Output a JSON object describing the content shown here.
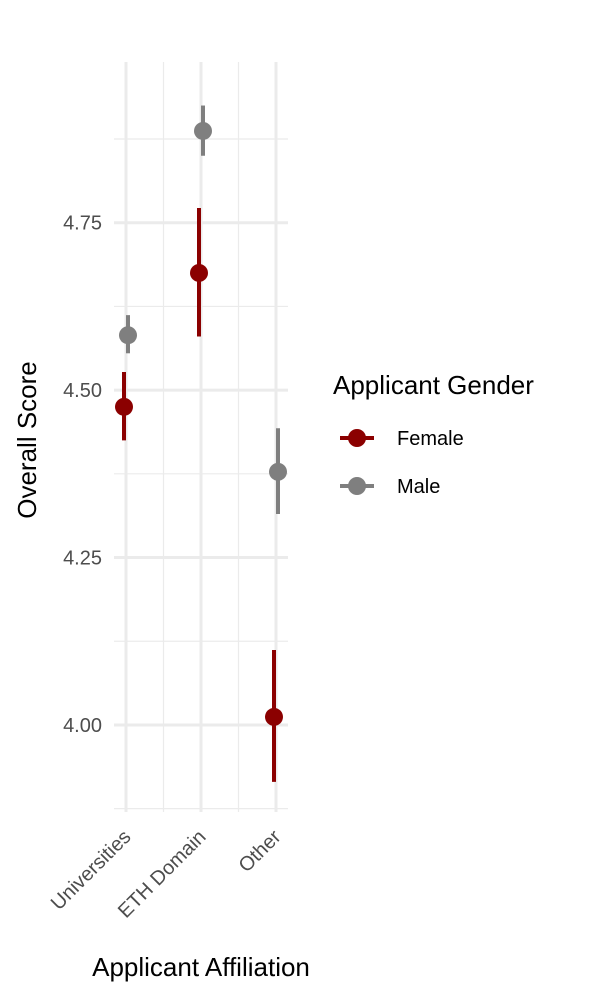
{
  "chart_data": {
    "type": "scatter",
    "subtype": "point-range",
    "xlabel": "Applicant Affiliation",
    "ylabel": "Overall Score",
    "categories": [
      "Universities",
      "ETH Domain",
      "Other"
    ],
    "ylim": [
      3.87,
      4.99
    ],
    "yticks": [
      4.0,
      4.25,
      4.5,
      4.75
    ],
    "ytick_labels": [
      "4.00",
      "4.25",
      "4.50",
      "4.75"
    ],
    "grid": true,
    "legend": {
      "title": "Applicant Gender",
      "position": "right"
    },
    "series": [
      {
        "name": "Female",
        "color": "#8B0000",
        "values": [
          4.475,
          4.675,
          4.012
        ],
        "lower": [
          4.425,
          4.58,
          3.915
        ],
        "upper": [
          4.527,
          4.772,
          4.112
        ]
      },
      {
        "name": "Male",
        "color": "#7F7F7F",
        "values": [
          4.582,
          4.887,
          4.378
        ],
        "lower": [
          4.555,
          4.85,
          4.315
        ],
        "upper": [
          4.612,
          4.925,
          4.443
        ]
      }
    ]
  }
}
